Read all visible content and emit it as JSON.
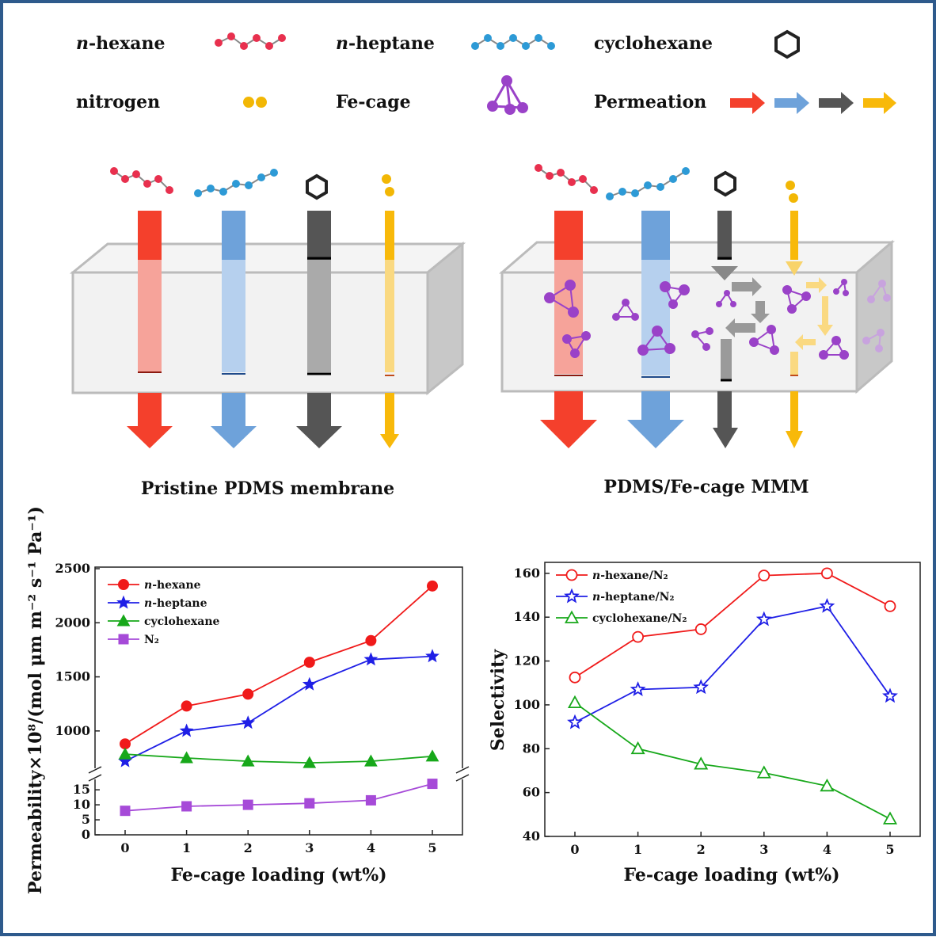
{
  "legend": {
    "hexane": {
      "prefix": "n",
      "name": "-hexane"
    },
    "heptane": {
      "prefix": "n",
      "name": "-heptane"
    },
    "cyclohexane": "cyclohexane",
    "nitrogen": "nitrogen",
    "fecage": "Fe-cage",
    "permeation": "Permeation"
  },
  "colors": {
    "hexane": "#f4402c",
    "heptane": "#6ea2da",
    "cyclohexane": "#5a5a5a",
    "nitrogen": "#f8b90a",
    "fecage": "#9a42c8",
    "frame": "#2e5a8c"
  },
  "captions": {
    "left": "Pristine PDMS membrane",
    "right": "PDMS/Fe-cage MMM"
  },
  "chart_data": [
    {
      "type": "line",
      "x": [
        0,
        1,
        2,
        3,
        4,
        5
      ],
      "xlabel": "Fe-cage loading (wt%)",
      "ylabel": "Permeability×10⁸/(mol μm m⁻² s⁻¹ Pa⁻¹)",
      "axis_break": true,
      "upper_ylim": [
        640,
        2500
      ],
      "upper_ticks": [
        "1000",
        "1500",
        "2000",
        "2500"
      ],
      "lower_ylim": [
        0,
        19
      ],
      "lower_ticks": [
        "0",
        "5",
        "10",
        "15"
      ],
      "xticks": [
        "0",
        "1",
        "2",
        "3",
        "4",
        "5"
      ],
      "legend_position": "top-left",
      "series": [
        {
          "name": "n-hexane",
          "label_prefix": "n",
          "label_rest": "-hexane",
          "marker": "circle",
          "color": "#f01a1a",
          "values": [
            880,
            1230,
            1340,
            1635,
            1835,
            2340
          ]
        },
        {
          "name": "n-heptane",
          "label_prefix": "n",
          "label_rest": "-heptane",
          "marker": "star",
          "color": "#1f1fe6",
          "values": [
            720,
            1000,
            1075,
            1430,
            1660,
            1690
          ]
        },
        {
          "name": "cyclohexane",
          "label_prefix": "",
          "label_rest": "cyclohexane",
          "marker": "triangle",
          "color": "#17a81a",
          "values": [
            785,
            750,
            720,
            705,
            720,
            765
          ]
        },
        {
          "name": "N2",
          "label_prefix": "",
          "label_rest": "N₂",
          "marker": "square",
          "color": "#a64ad8",
          "values": [
            8,
            9.5,
            10,
            10.5,
            11.5,
            17
          ]
        }
      ]
    },
    {
      "type": "line",
      "x": [
        0,
        1,
        2,
        3,
        4,
        5
      ],
      "xlabel": "Fe-cage loading (wt%)",
      "ylabel": "Selectivity",
      "ylim": [
        40,
        165
      ],
      "yticks": [
        "40",
        "60",
        "80",
        "100",
        "120",
        "140",
        "160"
      ],
      "xticks": [
        "0",
        "1",
        "2",
        "3",
        "4",
        "5"
      ],
      "legend_position": "top-left",
      "series": [
        {
          "name": "n-hexane/N2",
          "label_prefix": "n",
          "label_rest": "-hexane/N₂",
          "marker": "circle-open",
          "color": "#f01a1a",
          "values": [
            112.5,
            131,
            134.5,
            159,
            160,
            145
          ]
        },
        {
          "name": "n-heptane/N2",
          "label_prefix": "n",
          "label_rest": "-heptane/N₂",
          "marker": "star-open",
          "color": "#1f1fe6",
          "values": [
            92,
            107,
            108,
            139,
            145,
            104
          ]
        },
        {
          "name": "cyclohexane/N2",
          "label_prefix": "",
          "label_rest": "cyclohexane/N₂",
          "marker": "triangle-open",
          "color": "#17a81a",
          "values": [
            101,
            80,
            73,
            69,
            63,
            48
          ]
        }
      ]
    }
  ]
}
